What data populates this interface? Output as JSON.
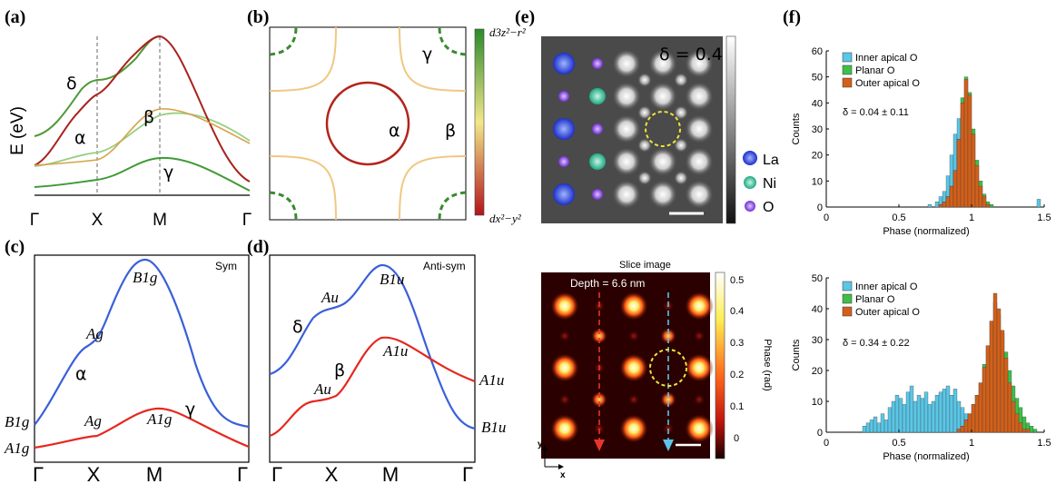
{
  "panels": {
    "a": {
      "label": "(a)",
      "ylabel": "E (eV)",
      "ticks": [
        "Γ",
        "X",
        "M",
        "Γ"
      ],
      "bands": {
        "delta": "δ",
        "alpha": "α",
        "beta": "β",
        "gamma": "γ"
      }
    },
    "b": {
      "label": "(b)",
      "bands": {
        "gamma": "γ",
        "alpha": "α",
        "beta": "β"
      },
      "colorbar_top": "d3z²−r²",
      "colorbar_bottom": "dx²−y²"
    },
    "c": {
      "label": "(c)",
      "title": "Sym",
      "ticks": [
        "Γ",
        "X",
        "M",
        "Γ"
      ],
      "bands": {
        "alpha": "α",
        "gamma": "γ"
      },
      "irreps": {
        "B1g_top": "B1g",
        "Ag_1": "Ag",
        "B1g_left": "B1g",
        "Ag_2": "Ag",
        "A1g_mid": "A1g",
        "A1g_left": "A1g"
      }
    },
    "d": {
      "label": "(d)",
      "title": "Anti-sym",
      "ticks": [
        "Γ",
        "X",
        "M",
        "Γ"
      ],
      "bands": {
        "delta": "δ",
        "beta": "β"
      },
      "irreps": {
        "B1u_top": "B1u",
        "Au_1": "Au",
        "Au_2": "Au",
        "A1u_mid": "A1u",
        "A1u_right": "A1u",
        "B1u_right": "B1u"
      }
    },
    "e": {
      "label": "(e)",
      "delta_value": "δ = 0.4",
      "legend": [
        {
          "name": "La",
          "color": "#2a3fd6"
        },
        {
          "name": "Ni",
          "color": "#2ec4a0"
        },
        {
          "name": "O",
          "color": "#8a4fd8"
        }
      ],
      "slice_title": "Slice image",
      "depth": "Depth  = 6.6  nm",
      "phase_label": "Phase (rad)",
      "phase_ticks": [
        "0.5",
        "0.4",
        "0.3",
        "0.2",
        "0.1",
        "0"
      ],
      "axis_y": "y",
      "axis_x": "x"
    },
    "f": {
      "label": "(f)"
    }
  },
  "chart_data": [
    {
      "type": "bar",
      "title": "Histogram, δ = 0.04 ± 0.11",
      "annotation": "δ = 0.04 ± 0.11",
      "xlabel": "Phase (normalized)",
      "ylabel": "Counts",
      "xlim": [
        0,
        1.5
      ],
      "ylim": [
        0,
        60
      ],
      "xticks": [
        "0",
        "0.5",
        "1",
        "1.5"
      ],
      "yticks": [
        "0",
        "10",
        "20",
        "30",
        "40",
        "50",
        "60"
      ],
      "bin_width": 0.025,
      "bin_start": 0.7,
      "series": [
        {
          "name": "Inner apical O",
          "color": "#5bc6e6",
          "values": [
            1,
            0,
            2,
            4,
            6,
            12,
            20,
            28,
            34,
            36,
            32,
            22,
            12,
            5,
            2,
            1,
            0,
            0
          ]
        },
        {
          "name": "Planar O",
          "color": "#3fbf4a",
          "values": [
            0,
            0,
            0,
            1,
            2,
            4,
            8,
            14,
            26,
            42,
            50,
            44,
            30,
            18,
            10,
            5,
            2,
            1
          ]
        },
        {
          "name": "Outer apical O",
          "color": "#d2601a",
          "values": [
            0,
            0,
            0,
            1,
            2,
            4,
            8,
            14,
            26,
            40,
            49,
            43,
            28,
            16,
            8,
            4,
            1,
            0
          ]
        }
      ],
      "outliers": [
        {
          "x": 1.45,
          "value": 3,
          "series": "Inner apical O"
        }
      ]
    },
    {
      "type": "bar",
      "title": "Histogram, δ = 0.34 ± 0.22",
      "annotation": "δ = 0.34 ± 0.22",
      "xlabel": "Phase (normalized)",
      "ylabel": "Counts",
      "xlim": [
        0,
        1.5
      ],
      "ylim": [
        0,
        50
      ],
      "xticks": [
        "0",
        "0.5",
        "1",
        "1.5"
      ],
      "yticks": [
        "0",
        "10",
        "20",
        "30",
        "40",
        "50"
      ],
      "bin_width": 0.025,
      "bin_start": 0.25,
      "series": [
        {
          "name": "Inner apical O",
          "color": "#5bc6e6",
          "values": [
            2,
            3,
            4,
            5,
            3,
            6,
            4,
            8,
            10,
            12,
            11,
            9,
            13,
            15,
            10,
            12,
            11,
            13,
            9,
            10,
            12,
            13,
            14,
            15,
            12,
            14,
            10,
            8,
            6,
            4,
            3,
            2,
            1,
            1,
            0,
            0,
            0,
            0,
            0,
            0,
            0,
            0,
            0,
            0,
            0,
            0,
            0,
            0
          ]
        },
        {
          "name": "Planar O",
          "color": "#3fbf4a",
          "values": [
            0,
            0,
            0,
            0,
            0,
            0,
            0,
            0,
            0,
            0,
            0,
            0,
            0,
            0,
            0,
            0,
            0,
            0,
            0,
            0,
            0,
            0,
            0,
            0,
            0,
            0,
            1,
            2,
            4,
            6,
            9,
            12,
            16,
            22,
            28,
            36,
            42,
            38,
            32,
            26,
            20,
            15,
            11,
            8,
            5,
            3,
            2,
            1
          ]
        },
        {
          "name": "Outer apical O",
          "color": "#d2601a",
          "values": [
            0,
            0,
            0,
            0,
            0,
            0,
            0,
            0,
            0,
            0,
            0,
            0,
            0,
            0,
            0,
            0,
            0,
            0,
            0,
            0,
            0,
            0,
            0,
            0,
            0,
            0,
            1,
            2,
            4,
            6,
            9,
            12,
            16,
            21,
            28,
            36,
            45,
            40,
            33,
            24,
            16,
            10,
            6,
            3,
            1,
            1,
            0,
            0
          ]
        }
      ]
    }
  ]
}
